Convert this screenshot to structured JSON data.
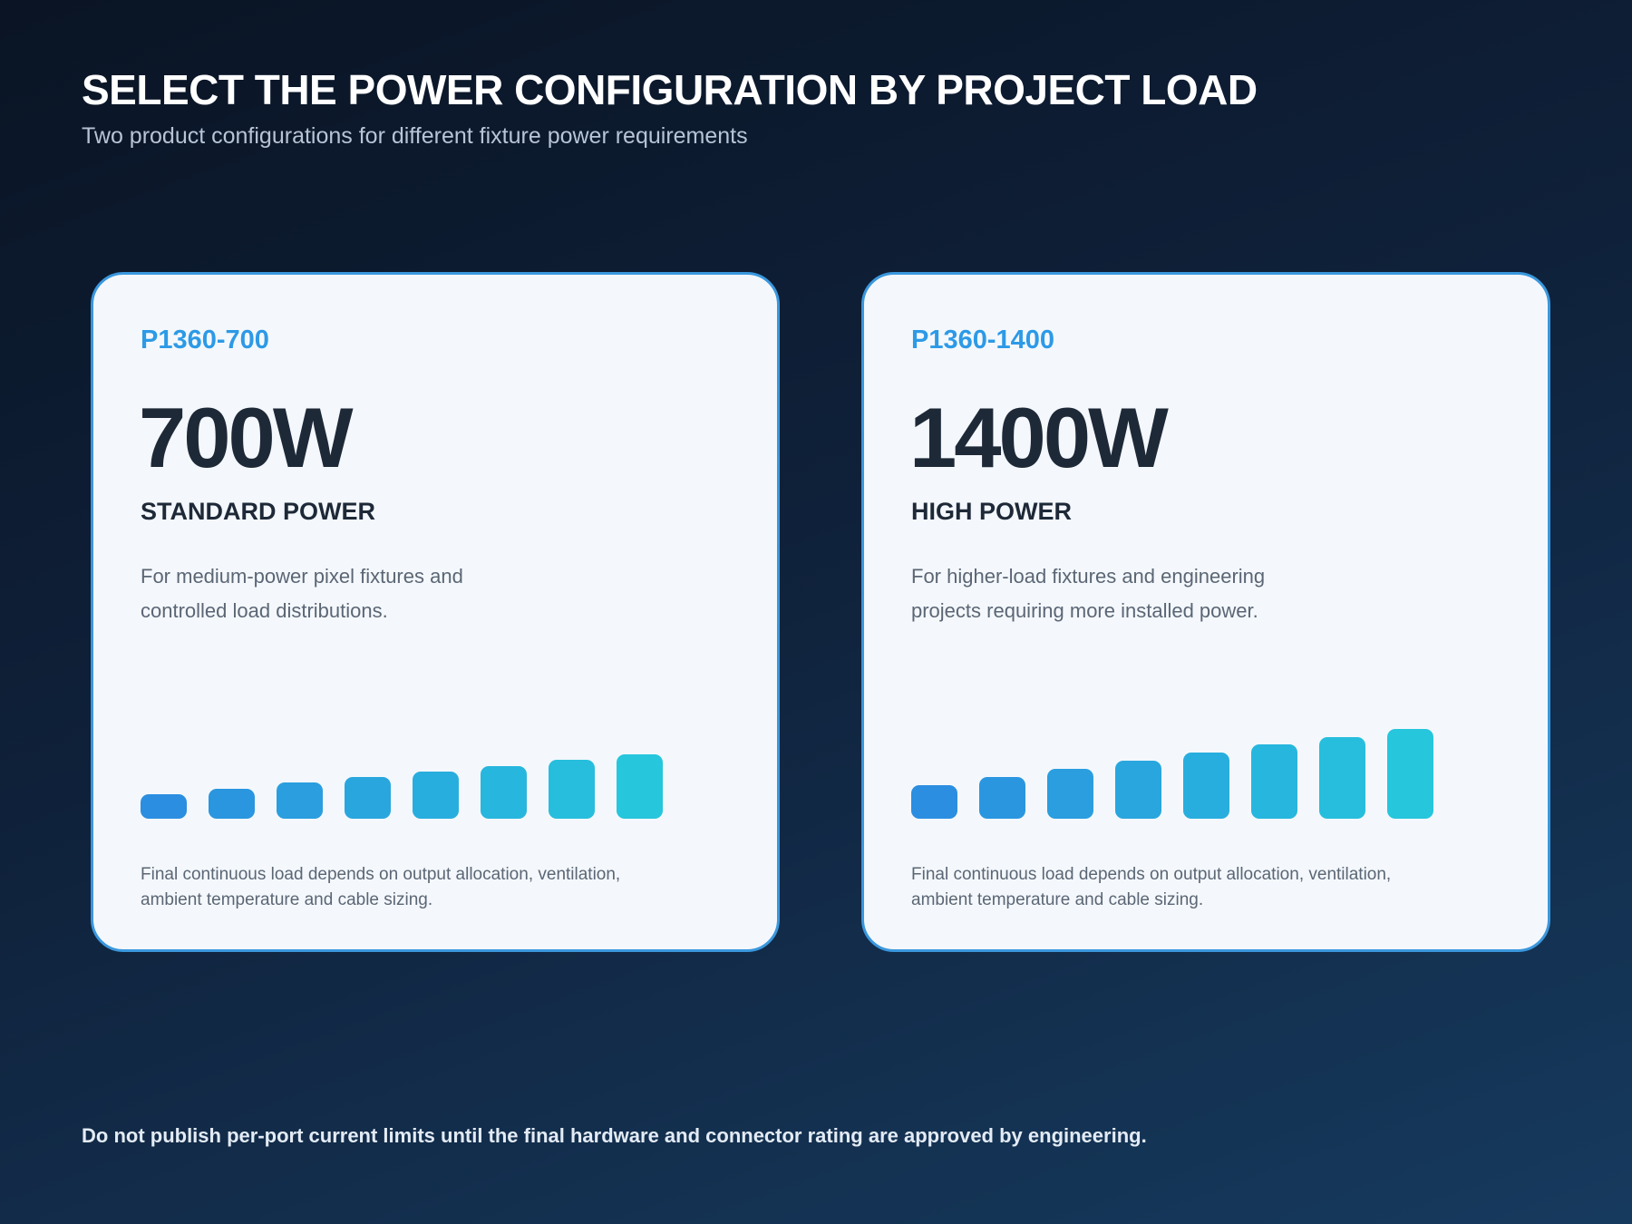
{
  "header": {
    "title": "SELECT THE POWER CONFIGURATION BY PROJECT LOAD",
    "subtitle": "Two product configurations for different fixture power requirements"
  },
  "cards": [
    {
      "model": "P1360-700",
      "wattage": "700W",
      "power_type": "STANDARD POWER",
      "description": "For medium-power pixel fixtures and controlled load distributions.",
      "bar_levels": [
        0.3,
        0.37,
        0.44,
        0.51,
        0.58,
        0.65,
        0.72,
        0.79
      ],
      "note": "Final continuous load depends on output allocation, ventilation, ambient temperature and cable sizing."
    },
    {
      "model": "P1360-1400",
      "wattage": "1400W",
      "power_type": "HIGH POWER",
      "description": "For higher-load fixtures and engineering projects requiring more installed power.",
      "bar_levels": [
        0.41,
        0.51,
        0.61,
        0.71,
        0.81,
        0.91,
        1.0,
        1.1
      ],
      "note": "Final continuous load depends on output allocation, ventilation, ambient temperature and cable sizing."
    }
  ],
  "colors": {
    "accent": "#2d9ae6",
    "bar_start": "#2b8ee0",
    "bar_end": "#26c6dc",
    "card_border": "#3a97dd"
  },
  "footer": {
    "text": "Do not publish per-port current limits until the final hardware and connector rating are approved by engineering."
  }
}
